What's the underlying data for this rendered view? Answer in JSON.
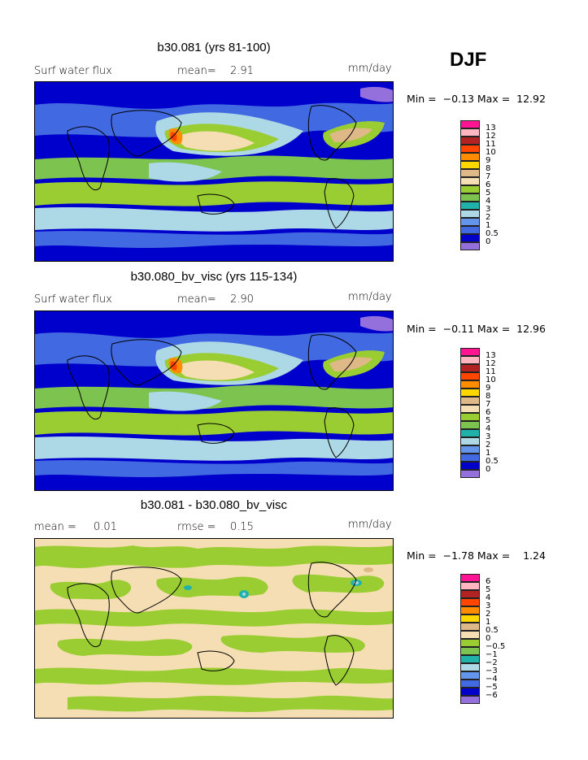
{
  "season": "DJF",
  "panels": [
    {
      "title": "b30.081 (yrs 81-100)",
      "left_label": "Surf water flux",
      "mid_label": "mean=",
      "mid_value": "2.91",
      "right_label": "mm/day",
      "min_label": "Min =",
      "min_value": "−0.13",
      "max_label": "Max =",
      "max_value": "12.92",
      "colorbar": {
        "labels": [
          "13",
          "12",
          "11",
          "10",
          "9",
          "8",
          "7",
          "6",
          "5",
          "4",
          "3",
          "2",
          "1",
          "0.5",
          "0"
        ],
        "colors": [
          "#ff1493",
          "#ffb6c1",
          "#b22222",
          "#ff4500",
          "#ff8c00",
          "#ffd700",
          "#deb887",
          "#f5deb3",
          "#9acd32",
          "#7cc34f",
          "#20b2aa",
          "#add8e6",
          "#6495ed",
          "#4169e1",
          "#0000cd",
          "#9370db"
        ]
      }
    },
    {
      "title": "b30.080_bv_visc (yrs 115-134)",
      "left_label": "Surf water flux",
      "mid_label": "mean=",
      "mid_value": "2.90",
      "right_label": "mm/day",
      "min_label": "Min =",
      "min_value": "−0.11",
      "max_label": "Max =",
      "max_value": "12.96",
      "colorbar": {
        "labels": [
          "13",
          "12",
          "11",
          "10",
          "9",
          "8",
          "7",
          "6",
          "5",
          "4",
          "3",
          "2",
          "1",
          "0.5",
          "0"
        ],
        "colors": [
          "#ff1493",
          "#ffb6c1",
          "#b22222",
          "#ff4500",
          "#ff8c00",
          "#ffd700",
          "#deb887",
          "#f5deb3",
          "#9acd32",
          "#7cc34f",
          "#20b2aa",
          "#add8e6",
          "#6495ed",
          "#4169e1",
          "#0000cd",
          "#9370db"
        ]
      }
    },
    {
      "title": "b30.081 - b30.080_bv_visc",
      "left_label": "mean =",
      "left_value": "0.01",
      "mid_label": "rmse =",
      "mid_value": "0.15",
      "right_label": "mm/day",
      "min_label": "Min =",
      "min_value": "−1.78",
      "max_label": "Max =",
      "max_value": "1.24",
      "colorbar": {
        "labels": [
          "6",
          "5",
          "4",
          "3",
          "2",
          "1",
          "0.5",
          "0",
          "−0.5",
          "−1",
          "−2",
          "−3",
          "−4",
          "−5",
          "−6"
        ],
        "colors": [
          "#ff1493",
          "#ffb6c1",
          "#b22222",
          "#ff4500",
          "#ff8c00",
          "#ffd700",
          "#deb887",
          "#f5deb3",
          "#9acd32",
          "#7cc34f",
          "#20b2aa",
          "#add8e6",
          "#6495ed",
          "#4169e1",
          "#0000cd",
          "#9370db"
        ]
      }
    }
  ]
}
